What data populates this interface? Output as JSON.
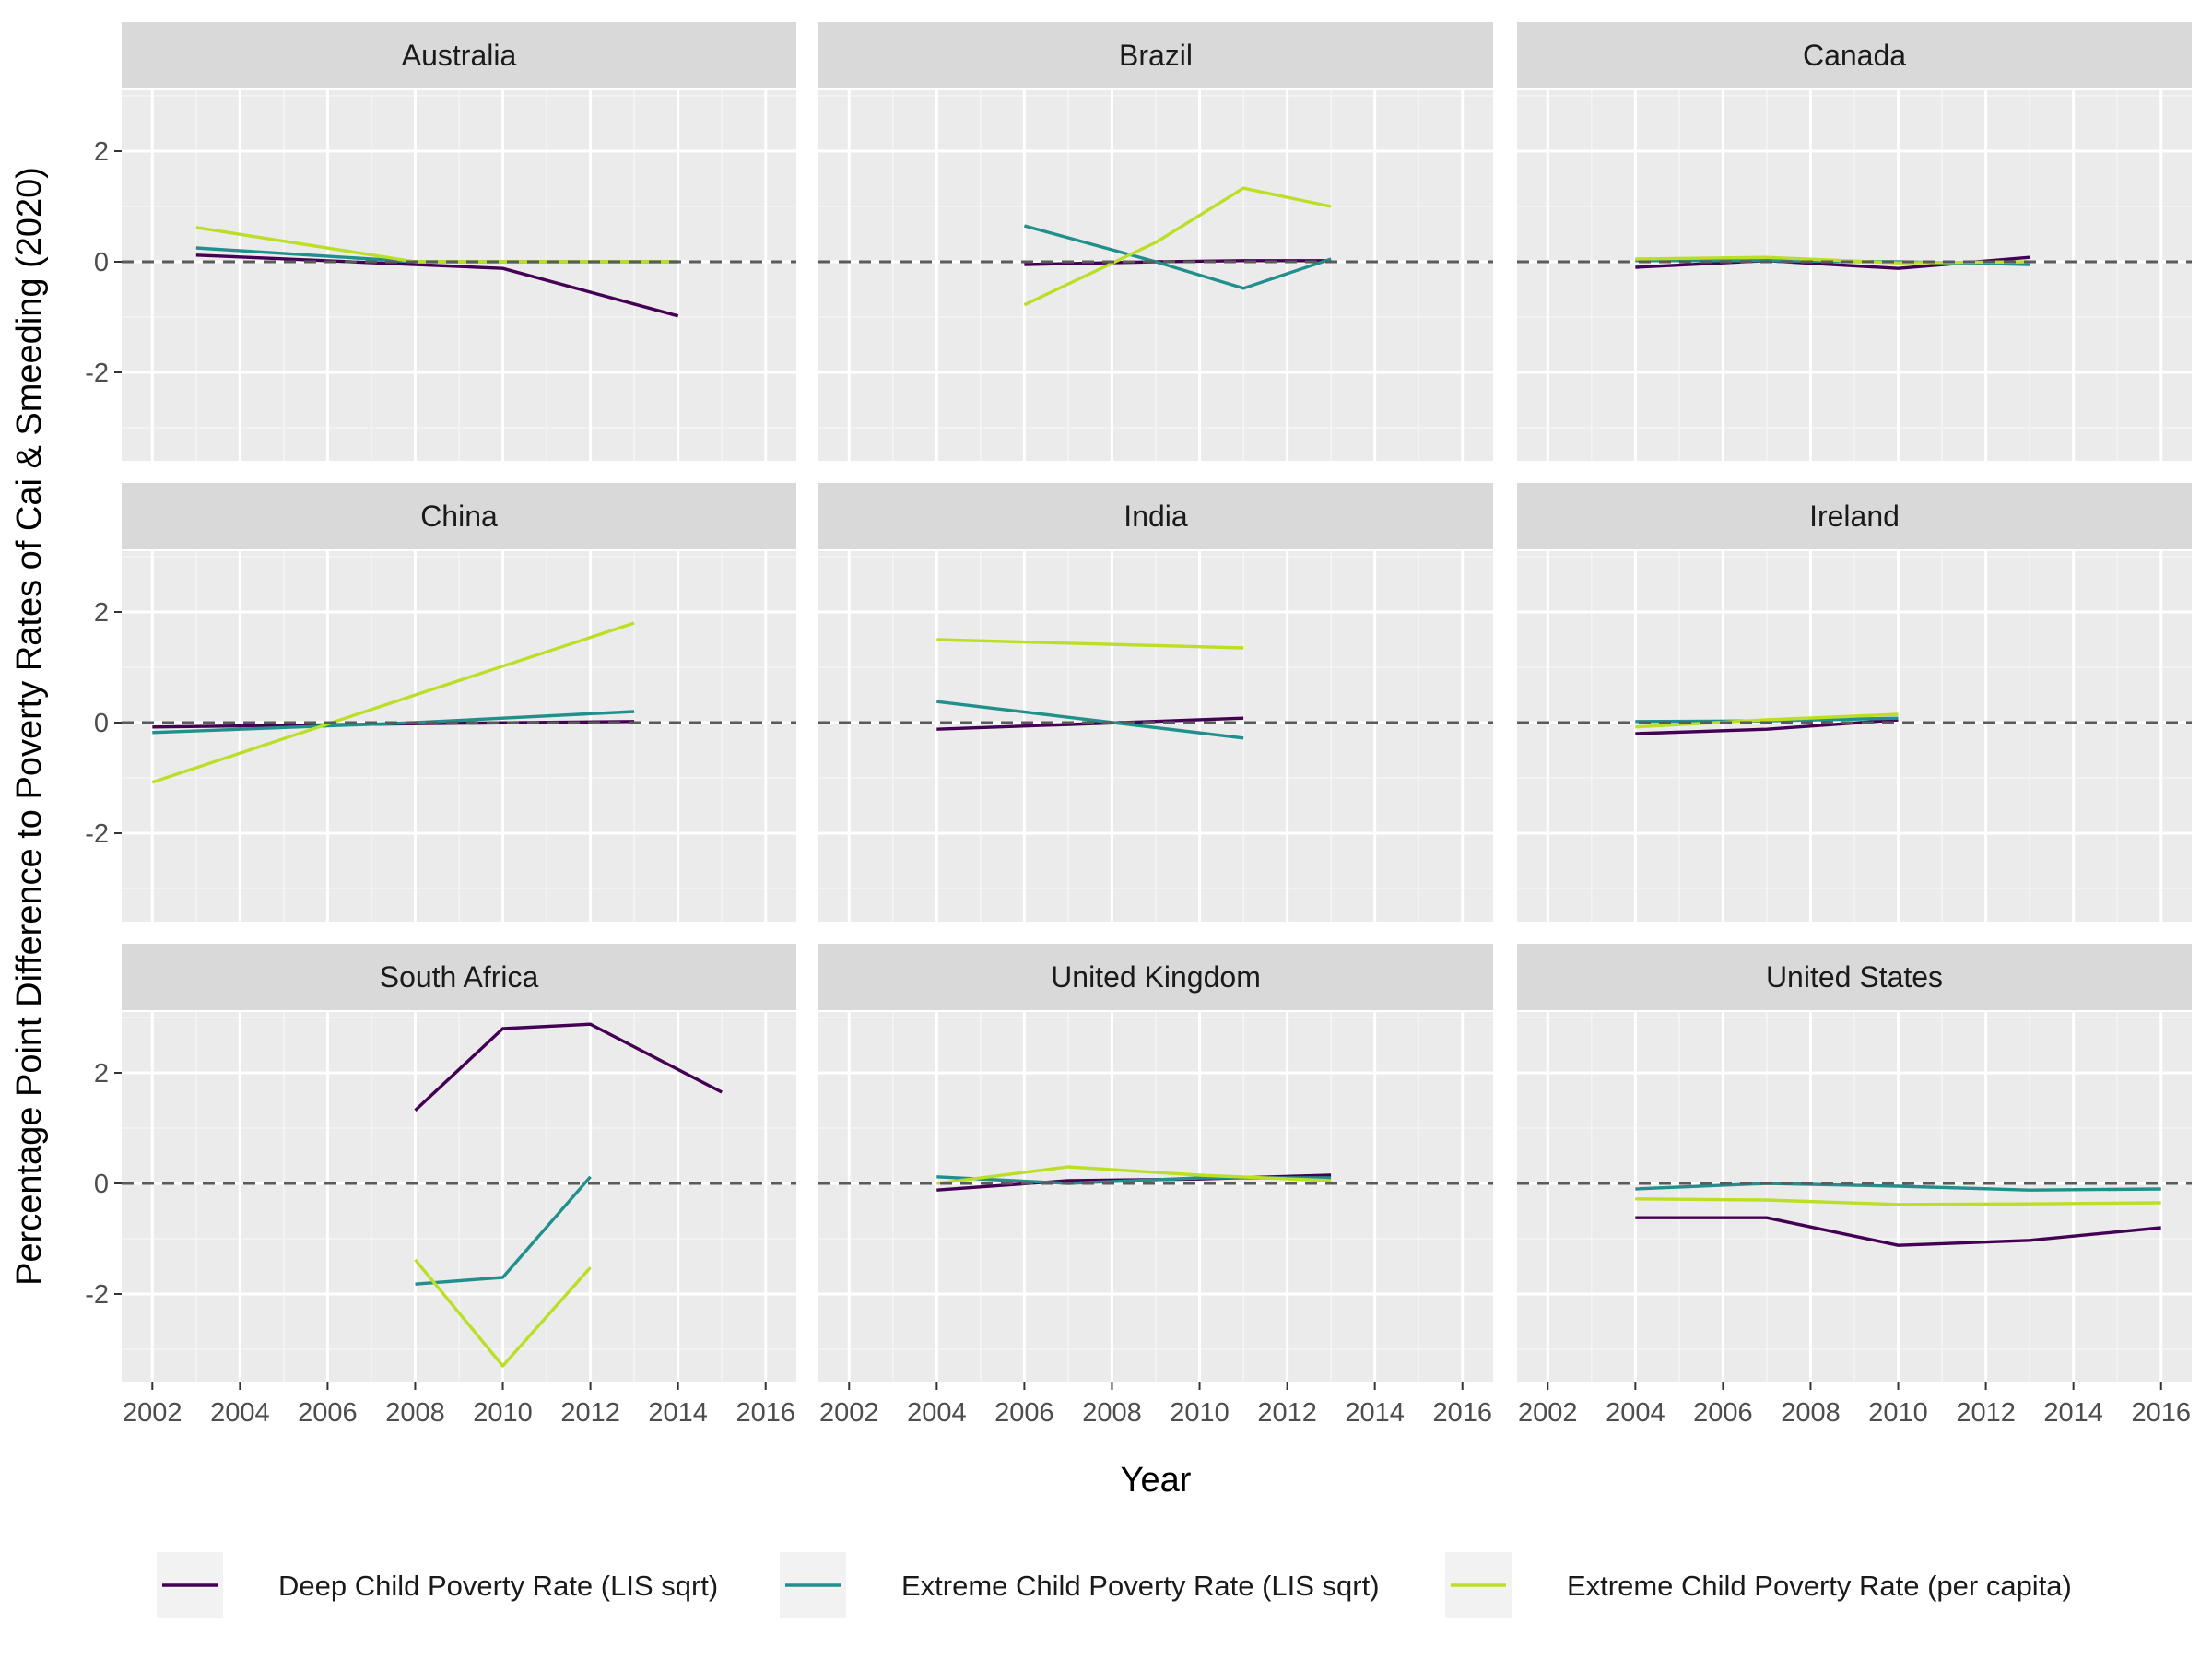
{
  "chart_data": {
    "type": "line",
    "xlabel": "Year",
    "ylabel": "Percentage Point Difference to Poverty Rates of Cai & Smeeding (2020)",
    "xlim": [
      2001.3,
      2016.7
    ],
    "ylim": [
      -3.6,
      3.1
    ],
    "x_ticks": [
      2002,
      2004,
      2006,
      2008,
      2010,
      2012,
      2014,
      2016
    ],
    "y_ticks": [
      -2,
      0,
      2
    ],
    "reference_line": 0,
    "grid": true,
    "legend_position": "bottom",
    "series_colors": {
      "deep_lis": "#440154",
      "extreme_lis": "#21908C",
      "extreme_pc": "#BBDF27"
    },
    "legend": [
      {
        "key": "deep_lis",
        "label": "Deep Child Poverty Rate (LIS sqrt)"
      },
      {
        "key": "extreme_lis",
        "label": "Extreme Child Poverty Rate (LIS sqrt)"
      },
      {
        "key": "extreme_pc",
        "label": "Extreme Child Poverty Rate (per capita)"
      }
    ],
    "panels": [
      {
        "title": "Australia",
        "series": {
          "deep_lis": [
            [
              2003,
              0.12
            ],
            [
              2008,
              -0.05
            ],
            [
              2010,
              -0.12
            ],
            [
              2014,
              -0.98
            ]
          ],
          "extreme_lis": [
            [
              2003,
              0.25
            ],
            [
              2008,
              0.0
            ],
            [
              2010,
              0.0
            ],
            [
              2014,
              0.0
            ]
          ],
          "extreme_pc": [
            [
              2003,
              0.62
            ],
            [
              2008,
              0.0
            ],
            [
              2010,
              0.0
            ],
            [
              2014,
              0.0
            ]
          ]
        }
      },
      {
        "title": "Brazil",
        "series": {
          "deep_lis": [
            [
              2006,
              -0.05
            ],
            [
              2009,
              0.0
            ],
            [
              2011,
              0.02
            ],
            [
              2013,
              0.02
            ]
          ],
          "extreme_lis": [
            [
              2006,
              0.65
            ],
            [
              2009,
              0.0
            ],
            [
              2011,
              -0.48
            ],
            [
              2013,
              0.05
            ]
          ],
          "extreme_pc": [
            [
              2006,
              -0.78
            ],
            [
              2009,
              0.35
            ],
            [
              2011,
              1.33
            ],
            [
              2013,
              1.0
            ]
          ]
        }
      },
      {
        "title": "Canada",
        "series": {
          "deep_lis": [
            [
              2004,
              -0.1
            ],
            [
              2007,
              0.02
            ],
            [
              2010,
              -0.12
            ],
            [
              2013,
              0.08
            ]
          ],
          "extreme_lis": [
            [
              2004,
              0.02
            ],
            [
              2007,
              0.02
            ],
            [
              2010,
              0.0
            ],
            [
              2013,
              -0.05
            ]
          ],
          "extreme_pc": [
            [
              2004,
              0.05
            ],
            [
              2007,
              0.08
            ],
            [
              2010,
              -0.02
            ],
            [
              2013,
              0.0
            ]
          ]
        }
      },
      {
        "title": "China",
        "series": {
          "deep_lis": [
            [
              2002,
              -0.08
            ],
            [
              2008,
              -0.02
            ],
            [
              2013,
              0.02
            ]
          ],
          "extreme_lis": [
            [
              2002,
              -0.18
            ],
            [
              2008,
              0.0
            ],
            [
              2013,
              0.2
            ]
          ],
          "extreme_pc": [
            [
              2002,
              -1.08
            ],
            [
              2008,
              0.5
            ],
            [
              2013,
              1.8
            ]
          ]
        }
      },
      {
        "title": "India",
        "series": {
          "deep_lis": [
            [
              2004,
              -0.12
            ],
            [
              2011,
              0.08
            ]
          ],
          "extreme_lis": [
            [
              2004,
              0.38
            ],
            [
              2011,
              -0.28
            ]
          ],
          "extreme_pc": [
            [
              2004,
              1.5
            ],
            [
              2011,
              1.35
            ]
          ]
        }
      },
      {
        "title": "Ireland",
        "series": {
          "deep_lis": [
            [
              2004,
              -0.2
            ],
            [
              2007,
              -0.12
            ],
            [
              2010,
              0.05
            ]
          ],
          "extreme_lis": [
            [
              2004,
              0.02
            ],
            [
              2007,
              0.03
            ],
            [
              2010,
              0.08
            ]
          ],
          "extreme_pc": [
            [
              2004,
              -0.08
            ],
            [
              2007,
              0.05
            ],
            [
              2010,
              0.15
            ]
          ]
        }
      },
      {
        "title": "South Africa",
        "series": {
          "deep_lis": [
            [
              2008,
              1.32
            ],
            [
              2010,
              2.8
            ],
            [
              2012,
              2.88
            ],
            [
              2015,
              1.65
            ]
          ],
          "extreme_lis": [
            [
              2008,
              -1.82
            ],
            [
              2010,
              -1.7
            ],
            [
              2012,
              0.12
            ]
          ],
          "extreme_pc": [
            [
              2008,
              -1.38
            ],
            [
              2010,
              -3.3
            ],
            [
              2012,
              -1.52
            ]
          ]
        }
      },
      {
        "title": "United Kingdom",
        "series": {
          "deep_lis": [
            [
              2004,
              -0.12
            ],
            [
              2007,
              0.05
            ],
            [
              2010,
              0.08
            ],
            [
              2013,
              0.15
            ]
          ],
          "extreme_lis": [
            [
              2004,
              0.12
            ],
            [
              2007,
              0.0
            ],
            [
              2010,
              0.1
            ],
            [
              2013,
              0.1
            ]
          ],
          "extreme_pc": [
            [
              2004,
              0.0
            ],
            [
              2007,
              0.3
            ],
            [
              2010,
              0.15
            ],
            [
              2013,
              0.05
            ]
          ]
        }
      },
      {
        "title": "United States",
        "series": {
          "deep_lis": [
            [
              2004,
              -0.62
            ],
            [
              2007,
              -0.62
            ],
            [
              2010,
              -1.12
            ],
            [
              2013,
              -1.03
            ],
            [
              2016,
              -0.8
            ]
          ],
          "extreme_lis": [
            [
              2004,
              -0.1
            ],
            [
              2007,
              0.0
            ],
            [
              2010,
              -0.05
            ],
            [
              2013,
              -0.12
            ],
            [
              2016,
              -0.1
            ]
          ],
          "extreme_pc": [
            [
              2004,
              -0.28
            ],
            [
              2007,
              -0.3
            ],
            [
              2010,
              -0.38
            ],
            [
              2013,
              -0.37
            ],
            [
              2016,
              -0.35
            ]
          ]
        }
      }
    ]
  }
}
